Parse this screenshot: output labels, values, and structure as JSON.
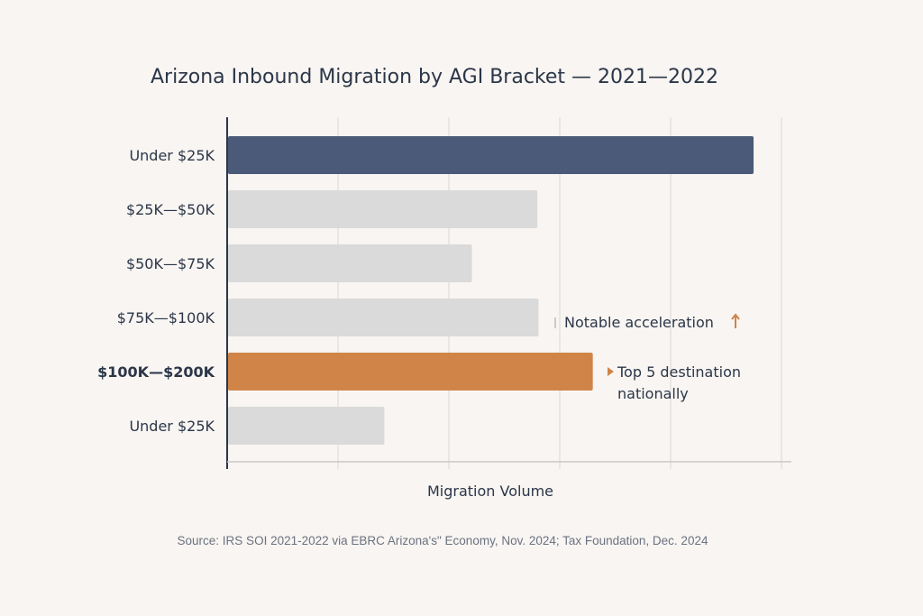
{
  "chart_data": {
    "type": "bar",
    "orientation": "horizontal",
    "title": "Arizona Inbound Migration by AGI Bracket — 2021—2022",
    "xlabel": "Migration Volume",
    "ylabel": "",
    "categories": [
      "Under $25K",
      "$25K—$50K",
      "$50K—$75K",
      "$75K—$100K",
      "$100K—$200K",
      "Under $25K"
    ],
    "values": [
      4.74,
      2.79,
      2.2,
      2.8,
      3.29,
      1.41
    ],
    "value_units": "relative (gridline intervals; axis has no tick labels)",
    "xlim": [
      0,
      5
    ],
    "grid": true,
    "colors": {
      "highlight_dark": "#4a5a78",
      "default": "#dadada",
      "highlight_accent": "#d08448",
      "arrow": "#d08448"
    },
    "bar_color_keys": [
      "highlight_dark",
      "default",
      "default",
      "default",
      "highlight_accent",
      "default"
    ],
    "annotations": [
      {
        "category_index": 3,
        "text": "Notable acceleration",
        "icon": "up-arrow-icon"
      },
      {
        "category_index": 4,
        "lines": [
          "Top 5 destination",
          "nationally"
        ],
        "icon": "triangle-right-icon"
      }
    ],
    "source": "Source: IRS SOI 2021-2022 via EBRC Arizona'sʺ Economy, Nov. 2024; Tax Foundation, Dec. 2024"
  }
}
